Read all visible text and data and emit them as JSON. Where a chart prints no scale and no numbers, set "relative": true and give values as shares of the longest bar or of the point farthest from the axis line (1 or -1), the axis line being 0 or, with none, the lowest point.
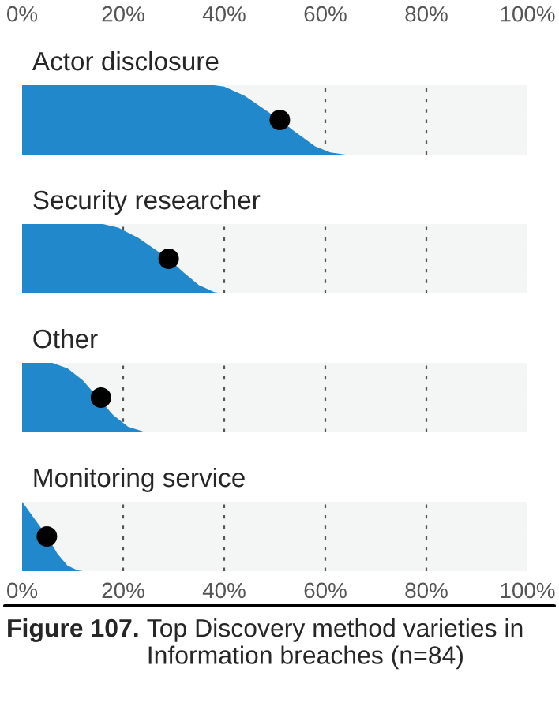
{
  "chart_data": [
    {
      "type": "area",
      "title": "Actor disclosure",
      "relative": true,
      "xlim": [
        0,
        100
      ],
      "xticks": [
        {
          "value": 0,
          "label": "0%"
        },
        {
          "value": 20,
          "label": "20%"
        },
        {
          "value": 40,
          "label": "40%"
        },
        {
          "value": 60,
          "label": "60%"
        },
        {
          "value": 80,
          "label": "80%"
        },
        {
          "value": 100,
          "label": "100%"
        }
      ],
      "tick_labels": "x",
      "grid": "x",
      "series": [
        {
          "color": "#2288cc",
          "x": [
            0,
            38,
            40,
            44,
            48,
            51,
            54,
            58,
            61,
            64,
            100
          ],
          "values": [
            1,
            1,
            0.98,
            0.85,
            0.65,
            0.5,
            0.33,
            0.12,
            0.03,
            0,
            0
          ]
        },
        {
          "type": "scatter",
          "color": "#000000",
          "x": [
            51
          ],
          "values": [
            0.5
          ],
          "marker": "circle"
        }
      ]
    },
    {
      "type": "area",
      "title": "Security researcher",
      "relative": true,
      "xlim": [
        0,
        100
      ],
      "xticks": [
        {
          "value": 20,
          "label": null
        },
        {
          "value": 40,
          "label": null
        },
        {
          "value": 60,
          "label": null
        },
        {
          "value": 80,
          "label": null
        },
        {
          "value": 100,
          "label": null
        }
      ],
      "tick_labels": false,
      "grid": "x",
      "series": [
        {
          "color": "#2288cc",
          "x": [
            0,
            16,
            19,
            23,
            26,
            29,
            32,
            35,
            38,
            40,
            100
          ],
          "values": [
            1,
            1,
            0.95,
            0.8,
            0.65,
            0.5,
            0.3,
            0.12,
            0.02,
            0,
            0
          ]
        },
        {
          "type": "scatter",
          "color": "#000000",
          "x": [
            29
          ],
          "values": [
            0.5
          ],
          "marker": "circle"
        }
      ]
    },
    {
      "type": "area",
      "title": "Other",
      "relative": true,
      "xlim": [
        0,
        100
      ],
      "xticks": [
        {
          "value": 20,
          "label": null
        },
        {
          "value": 40,
          "label": null
        },
        {
          "value": 60,
          "label": null
        },
        {
          "value": 80,
          "label": null
        },
        {
          "value": 100,
          "label": null
        }
      ],
      "tick_labels": false,
      "grid": "x",
      "series": [
        {
          "color": "#2288cc",
          "x": [
            0,
            6,
            9,
            12,
            15,
            18,
            21,
            24,
            26,
            100
          ],
          "values": [
            1,
            1,
            0.92,
            0.75,
            0.5,
            0.25,
            0.08,
            0.01,
            0,
            0
          ]
        },
        {
          "type": "scatter",
          "color": "#000000",
          "x": [
            15.6
          ],
          "values": [
            0.5
          ],
          "marker": "circle"
        }
      ]
    },
    {
      "type": "area",
      "title": "Monitoring service",
      "relative": true,
      "xlim": [
        0,
        100
      ],
      "xticks": [
        {
          "value": 0,
          "label": "0%"
        },
        {
          "value": 20,
          "label": "20%"
        },
        {
          "value": 40,
          "label": "40%"
        },
        {
          "value": 60,
          "label": "60%"
        },
        {
          "value": 80,
          "label": "80%"
        },
        {
          "value": 100,
          "label": "100%"
        }
      ],
      "tick_labels": "x",
      "grid": "x",
      "annotations": [
        "Figure 107.",
        "Top Discovery method varieties in Information breaches (n=84)"
      ],
      "series": [
        {
          "color": "#2288cc",
          "x": [
            0,
            1,
            3,
            5,
            7,
            9,
            11,
            12,
            100
          ],
          "values": [
            1,
            0.9,
            0.7,
            0.5,
            0.25,
            0.08,
            0.01,
            0,
            0
          ]
        },
        {
          "type": "scatter",
          "color": "#000000",
          "x": [
            4.9
          ],
          "values": [
            0.5
          ],
          "marker": "circle"
        }
      ]
    }
  ]
}
